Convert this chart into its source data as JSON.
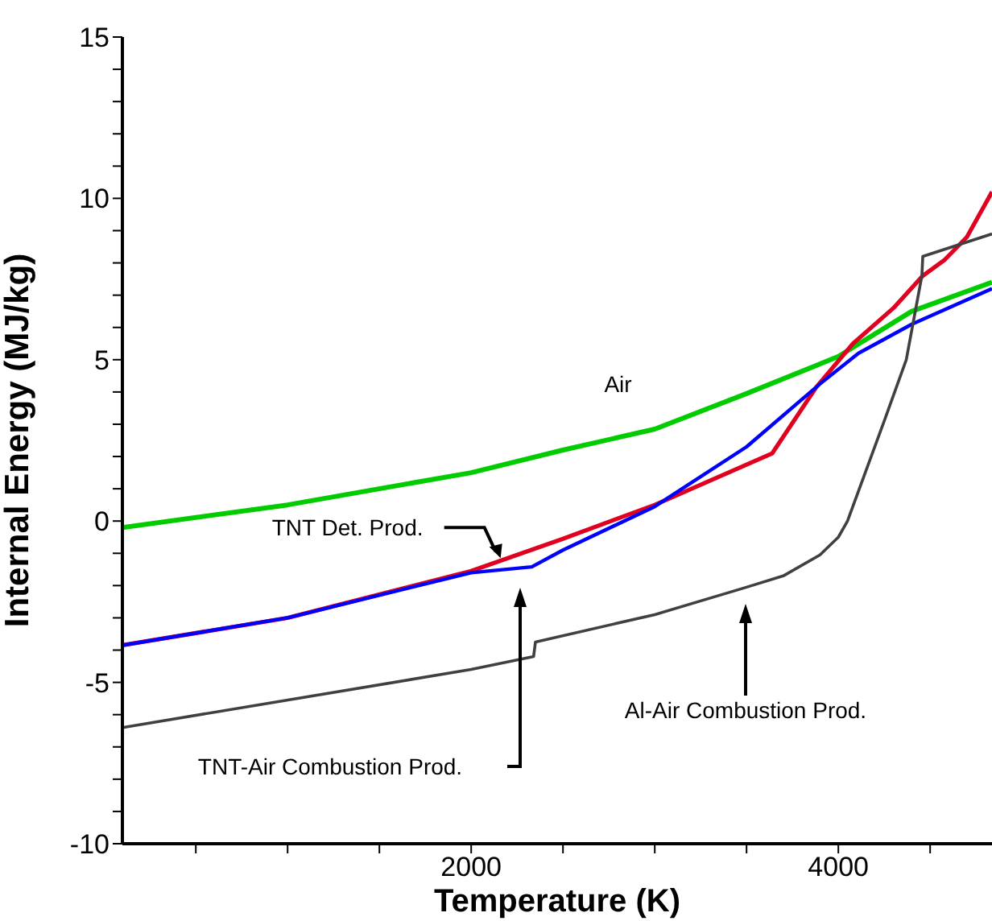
{
  "chart_data": {
    "type": "line",
    "xlabel": "Temperature (K)",
    "ylabel": "Internal Energy (MJ/kg)",
    "xlim": [
      100,
      4837
    ],
    "ylim": [
      -10,
      15
    ],
    "xticks": [
      {
        "value": 500,
        "label": null
      },
      {
        "value": 1000,
        "label": null
      },
      {
        "value": 1500,
        "label": null
      },
      2000,
      {
        "value": 2500,
        "label": null
      },
      {
        "value": 3000,
        "label": null
      },
      {
        "value": 3500,
        "label": null
      },
      4000,
      {
        "value": 4500,
        "label": null
      }
    ],
    "yticks": [
      -10,
      {
        "value": -9,
        "label": null
      },
      {
        "value": -8,
        "label": null
      },
      {
        "value": -7,
        "label": null
      },
      {
        "value": -6,
        "label": null
      },
      -5,
      {
        "value": -4,
        "label": null
      },
      {
        "value": -3,
        "label": null
      },
      {
        "value": -2,
        "label": null
      },
      {
        "value": -1,
        "label": null
      },
      0,
      {
        "value": 1,
        "label": null
      },
      {
        "value": 2,
        "label": null
      },
      {
        "value": 3,
        "label": null
      },
      {
        "value": 4,
        "label": null
      },
      5,
      {
        "value": 6,
        "label": null
      },
      {
        "value": 7,
        "label": null
      },
      {
        "value": 8,
        "label": null
      },
      {
        "value": 9,
        "label": null
      },
      10,
      {
        "value": 11,
        "label": null
      },
      {
        "value": 12,
        "label": null
      },
      {
        "value": 13,
        "label": null
      },
      {
        "value": 14,
        "label": null
      },
      15
    ],
    "marker": "none",
    "line_style": "solid",
    "series": [
      {
        "color": "#00cc00",
        "x": [
          100,
          1000,
          2000,
          2500,
          3000,
          3500,
          4000,
          4400,
          4837
        ],
        "values": [
          -0.2,
          0.5,
          1.5,
          2.2,
          2.85,
          3.95,
          5.1,
          6.5,
          7.4
        ]
      },
      {
        "color": "#e00020",
        "x": [
          100,
          1000,
          2000,
          2500,
          3000,
          3640,
          3880,
          4080,
          4300,
          4460,
          4580,
          4700,
          4837
        ],
        "values": [
          -3.85,
          -3.0,
          -1.55,
          -0.55,
          0.5,
          2.1,
          4.15,
          5.5,
          6.6,
          7.6,
          8.1,
          8.8,
          10.2
        ]
      },
      {
        "color": "#0000ff",
        "x": [
          100,
          1000,
          2000,
          2330,
          2500,
          3000,
          3500,
          3900,
          4110,
          4400,
          4837
        ],
        "values": [
          -3.85,
          -3.0,
          -1.6,
          -1.42,
          -0.9,
          0.45,
          2.3,
          4.25,
          5.2,
          6.1,
          7.2
        ]
      },
      {
        "color": "#404040",
        "x": [
          100,
          2000,
          2340,
          2350,
          3000,
          3500,
          3700,
          3900,
          4000,
          4050,
          4250,
          4370,
          4455,
          4460,
          4837
        ],
        "values": [
          -6.4,
          -4.6,
          -4.2,
          -3.75,
          -2.9,
          -2.05,
          -1.7,
          -1.05,
          -0.5,
          0,
          3.1,
          5.0,
          7.6,
          8.2,
          8.9
        ]
      }
    ],
    "annotations": [
      {
        "text": "Air",
        "x": 2800,
        "y": 2.5
      },
      {
        "text": "TNT Det. Prod.",
        "x": 2160,
        "y": -1.2
      },
      "TNT-Air Combustion Prod.",
      "Al-Air Combustion Prod."
    ]
  }
}
